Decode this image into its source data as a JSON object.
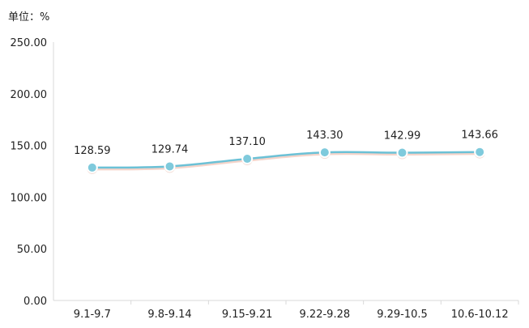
{
  "chart_data": {
    "type": "line",
    "unit_label": "单位：%",
    "categories": [
      "9.1-9.7",
      "9.8-9.14",
      "9.15-9.21",
      "9.22-9.28",
      "9.29-10.5",
      "10.6-10.12"
    ],
    "series": [
      {
        "values": [
          128.59,
          129.74,
          137.1,
          143.3,
          142.99,
          143.66
        ]
      }
    ],
    "data_labels": [
      "128.59",
      "129.74",
      "137.10",
      "143.30",
      "142.99",
      "143.66"
    ],
    "y_ticks": [
      "0.00",
      "50.00",
      "100.00",
      "150.00",
      "200.00",
      "250.00"
    ],
    "ylim": [
      0,
      250
    ],
    "grid": false,
    "line_color": "#6bc1d6",
    "marker_fill": "#7fcadc",
    "marker_stroke": "#ffffff",
    "axis_color": "#d9d9d9"
  }
}
